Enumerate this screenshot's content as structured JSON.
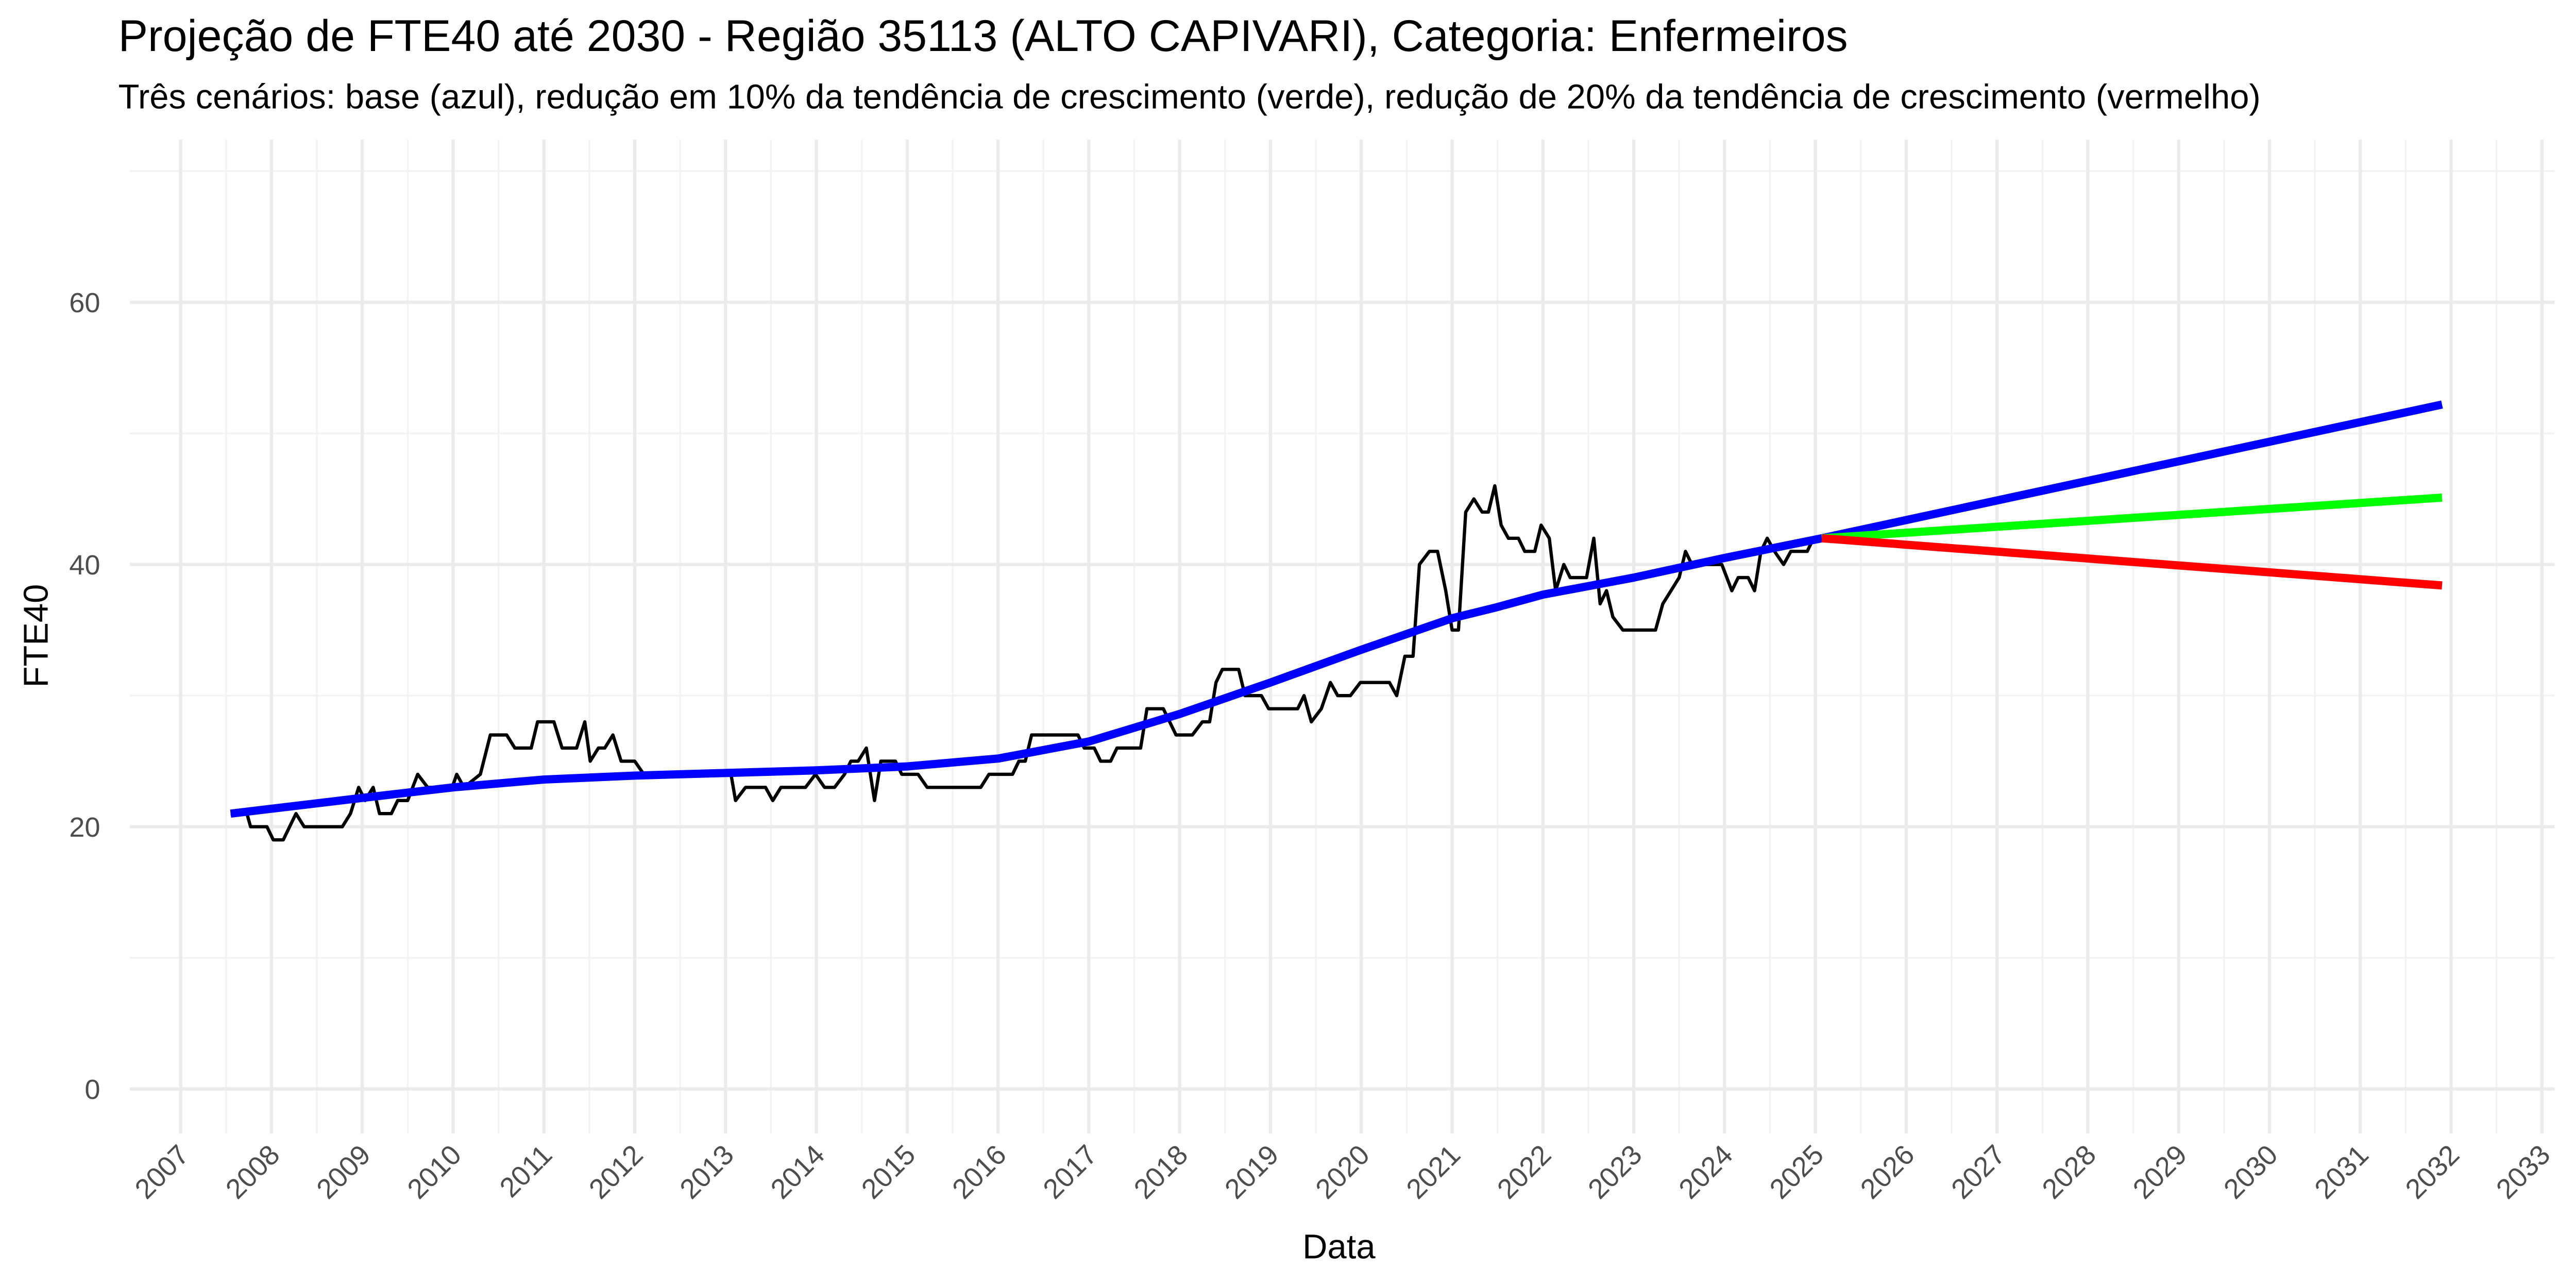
{
  "chart_data": {
    "type": "line",
    "title": "Projeção de FTE40 até 2030 - Região 35113 (ALTO CAPIVARI), Categoria: Enfermeiros",
    "subtitle": "Três cenários: base (azul), redução em 10% da tendência de crescimento (verde), redução de 20% da tendência de crescimento (vermelho)",
    "x_label": "Data",
    "y_label": "FTE40",
    "xlim": [
      2006.44,
      2033.14
    ],
    "ylim": [
      -3.4,
      72.4
    ],
    "xticks": [
      2007,
      2008,
      2009,
      2010,
      2011,
      2012,
      2013,
      2014,
      2015,
      2016,
      2017,
      2018,
      2019,
      2020,
      2021,
      2022,
      2023,
      2024,
      2025,
      2026,
      2027,
      2028,
      2029,
      2030,
      2031,
      2032,
      2033
    ],
    "yticks": [
      0,
      20,
      40,
      60
    ],
    "grid": true,
    "series": [
      {
        "color": "#000000",
        "width": 2,
        "x": [
          2007.55,
          2007.73,
          2007.77,
          2007.95,
          2008.02,
          2008.13,
          2008.27,
          2008.36,
          2008.78,
          2008.87,
          2008.96,
          2009.03,
          2009.12,
          2009.19,
          2009.32,
          2009.39,
          2009.5,
          2009.61,
          2009.72,
          2009.99,
          2010.04,
          2010.12,
          2010.3,
          2010.41,
          2010.59,
          2010.68,
          2010.86,
          2010.93,
          2011.11,
          2011.2,
          2011.36,
          2011.45,
          2011.51,
          2011.6,
          2011.67,
          2011.76,
          2011.85,
          2012.0,
          2012.1,
          2012.97,
          2013.06,
          2013.11,
          2013.22,
          2013.44,
          2013.52,
          2013.61,
          2013.88,
          2013.99,
          2014.09,
          2014.2,
          2014.31,
          2014.38,
          2014.46,
          2014.55,
          2014.64,
          2014.71,
          2014.87,
          2014.94,
          2015.12,
          2015.22,
          2015.81,
          2015.9,
          2016.16,
          2016.23,
          2016.3,
          2016.37,
          2016.88,
          2016.95,
          2017.06,
          2017.13,
          2017.24,
          2017.31,
          2017.57,
          2017.64,
          2017.82,
          2017.89,
          2017.96,
          2018.14,
          2018.25,
          2018.33,
          2018.4,
          2018.47,
          2018.65,
          2018.72,
          2018.9,
          2018.98,
          2019.3,
          2019.37,
          2019.45,
          2019.56,
          2019.66,
          2019.74,
          2019.88,
          2019.99,
          2020.31,
          2020.39,
          2020.48,
          2020.57,
          2020.64,
          2020.75,
          2020.84,
          2020.93,
          2021.0,
          2021.07,
          2021.15,
          2021.24,
          2021.33,
          2021.4,
          2021.47,
          2021.54,
          2021.62,
          2021.73,
          2021.8,
          2021.91,
          2021.98,
          2022.07,
          2022.14,
          2022.23,
          2022.3,
          2022.48,
          2022.56,
          2022.63,
          2022.7,
          2022.77,
          2022.88,
          2023.24,
          2023.32,
          2023.5,
          2023.57,
          2023.64,
          2023.97,
          2024.08,
          2024.15,
          2024.26,
          2024.33,
          2024.4,
          2024.47,
          2024.55,
          2024.65,
          2024.73,
          2024.91,
          2024.98
        ],
        "values": [
          21,
          21,
          20,
          20,
          19,
          19,
          21,
          20,
          20,
          21,
          23,
          22,
          23,
          21,
          21,
          22,
          22,
          24,
          23,
          23,
          24,
          23,
          24,
          27,
          27,
          26,
          26,
          28,
          28,
          26,
          26,
          28,
          25,
          26,
          26,
          27,
          25,
          25,
          24,
          24,
          24,
          22,
          23,
          23,
          22,
          23,
          23,
          24,
          23,
          23,
          24,
          25,
          25,
          26,
          22,
          25,
          25,
          24,
          24,
          23,
          23,
          24,
          24,
          25,
          25,
          27,
          27,
          26,
          26,
          25,
          25,
          26,
          26,
          29,
          29,
          28,
          27,
          27,
          28,
          28,
          31,
          32,
          32,
          30,
          30,
          29,
          29,
          30,
          28,
          29,
          31,
          30,
          30,
          31,
          31,
          30,
          33,
          33,
          40,
          41,
          41,
          38,
          35,
          35,
          44,
          45,
          44,
          44,
          46,
          43,
          42,
          42,
          41,
          41,
          43,
          42,
          38,
          40,
          39,
          39,
          42,
          37,
          38,
          36,
          35,
          35,
          37,
          39,
          41,
          40,
          40,
          38,
          39,
          39,
          38,
          41,
          42,
          41,
          40,
          41,
          41,
          42
        ]
      },
      {
        "color": "#0000ff",
        "width": 5,
        "x": [
          2007.55,
          2009,
          2010,
          2011,
          2012,
          2013,
          2014,
          2015,
          2016,
          2017,
          2018,
          2019,
          2020,
          2021,
          2021.47,
          2022,
          2023,
          2024,
          2025.07
        ],
        "values": [
          21,
          22.2,
          23,
          23.6,
          23.9,
          24.1,
          24.3,
          24.6,
          25.2,
          26.5,
          28.6,
          31.0,
          33.5,
          35.9,
          36.7,
          37.7,
          39,
          40.5,
          42
        ]
      },
      {
        "color": "#0000ff",
        "width": 5,
        "x": [
          2025.07,
          2031.9
        ],
        "values": [
          42,
          52.2
        ]
      },
      {
        "color": "#00ff00",
        "width": 5,
        "x": [
          2025.07,
          2031.9
        ],
        "values": [
          42,
          45.1
        ]
      },
      {
        "color": "#ff0000",
        "width": 5,
        "x": [
          2025.07,
          2031.9
        ],
        "values": [
          42,
          38.4
        ]
      }
    ]
  }
}
